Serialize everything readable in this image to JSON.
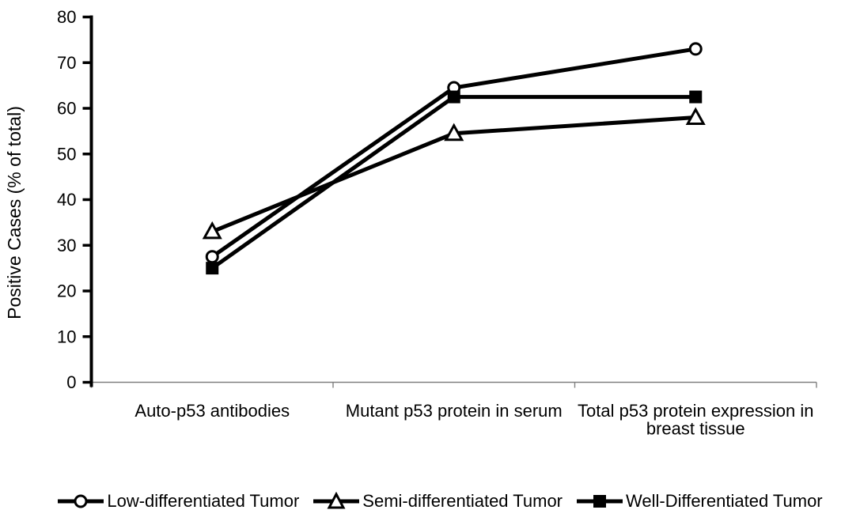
{
  "chart_data": {
    "type": "line",
    "categories": [
      "Auto-p53 antibodies",
      "Mutant p53 protein in serum",
      "Total p53 protein expression in\nbreast tissue"
    ],
    "series": [
      {
        "name": "Low-differentiated Tumor",
        "marker": "open-circle",
        "values": [
          27.5,
          64.5,
          73
        ]
      },
      {
        "name": "Semi-differentiated Tumor",
        "marker": "open-triangle",
        "values": [
          33,
          54.5,
          58
        ]
      },
      {
        "name": "Well-Differentiated Tumor",
        "marker": "filled-square",
        "values": [
          25,
          62.5,
          62.5
        ]
      }
    ],
    "ylabel": "Positive Cases (% of total)",
    "ylim": [
      0,
      80
    ],
    "yticks": [
      0,
      10,
      20,
      30,
      40,
      50,
      60,
      70,
      80
    ],
    "grid": false,
    "legend_position": "bottom",
    "line_color": "#000000",
    "marker_fill_open": "#ffffff",
    "x_axis_color": "#808080",
    "background_color": "#ffffff"
  }
}
